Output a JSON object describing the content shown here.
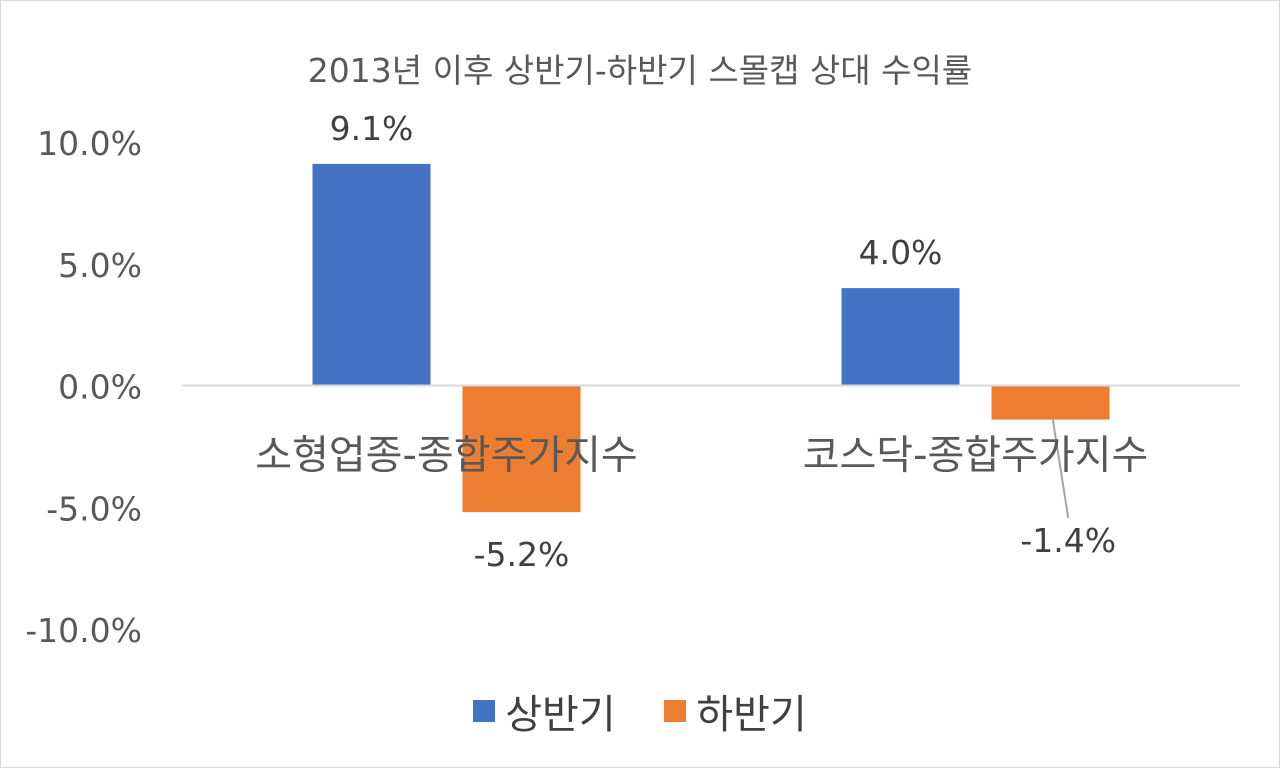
{
  "chart_data": {
    "type": "bar",
    "title": "2013년 이후 상반기-하반기 스몰캡 상대 수익률",
    "categories": [
      "소형업종-종합주가지수",
      "코스닥-종합주가지수"
    ],
    "series": [
      {
        "name": "상반기",
        "color": "#4472c4",
        "values": [
          9.1,
          4.0
        ],
        "labels": [
          "9.1%",
          "4.0%"
        ]
      },
      {
        "name": "하반기",
        "color": "#ed7d31",
        "values": [
          -5.2,
          -1.4
        ],
        "labels": [
          "-5.2%",
          "-1.4%"
        ]
      }
    ],
    "ylim": [
      -10,
      10
    ],
    "yticks": [
      10,
      5,
      0,
      -5,
      -10
    ],
    "ytick_labels": [
      "10.0%",
      "5.0%",
      "0.0%",
      "-5.0%",
      "-10.0%"
    ],
    "legend_position": "bottom",
    "grid": false
  }
}
